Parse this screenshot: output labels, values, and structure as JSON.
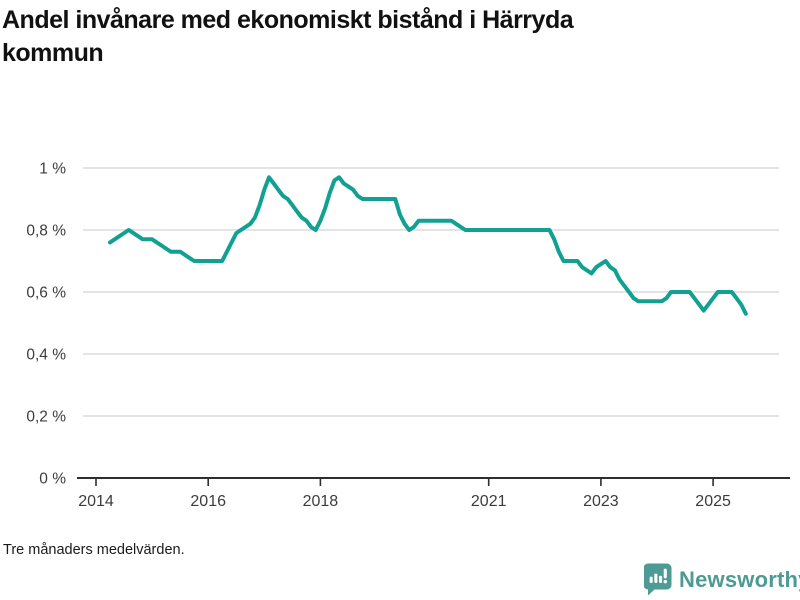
{
  "footnote": "Tre månaders medelvärden.",
  "branding": {
    "wordmark": "Newsworthy",
    "color": "#4E9A94",
    "icon": "speech-bubble-bar-chart-exclamation"
  },
  "colors": {
    "line": "#12A092",
    "grid": "#E1E1E1",
    "axis": "#2E2E2E",
    "tick_label": "#3C3C3C",
    "title": "#111111"
  },
  "chart_data": {
    "type": "line",
    "title": "Andel invånare med ekonomiskt bistånd i Härryda kommun",
    "note": "Tre månaders medelvärden.",
    "unit": "%",
    "x_type": "time-monthly",
    "xlabel": "",
    "ylabel": "",
    "ylim": [
      0,
      1.05
    ],
    "grid": "horizontal",
    "legend": "none",
    "yticks": [
      {
        "v": 0,
        "label": "0 %"
      },
      {
        "v": 0.2,
        "label": "0,2 %"
      },
      {
        "v": 0.4,
        "label": "0,4 %"
      },
      {
        "v": 0.6,
        "label": "0,6 %"
      },
      {
        "v": 0.8,
        "label": "0,8 %"
      },
      {
        "v": 1,
        "label": "1 %"
      }
    ],
    "xticks": [
      {
        "t": 2014,
        "label": "2014"
      },
      {
        "t": 2016,
        "label": "2016"
      },
      {
        "t": 2018,
        "label": "2018"
      },
      {
        "t": 2021,
        "label": "2021"
      },
      {
        "t": 2023,
        "label": "2023"
      },
      {
        "t": 2025,
        "label": "2025"
      }
    ],
    "series": [
      {
        "name": "Andel invånare med ekonomiskt bistånd (%)",
        "points": [
          [
            "2014-04",
            0.76
          ],
          [
            "2014-05",
            0.77
          ],
          [
            "2014-06",
            0.78
          ],
          [
            "2014-07",
            0.79
          ],
          [
            "2014-08",
            0.8
          ],
          [
            "2014-09",
            0.79
          ],
          [
            "2014-10",
            0.78
          ],
          [
            "2014-11",
            0.77
          ],
          [
            "2014-12",
            0.77
          ],
          [
            "2015-01",
            0.77
          ],
          [
            "2015-02",
            0.76
          ],
          [
            "2015-03",
            0.75
          ],
          [
            "2015-04",
            0.74
          ],
          [
            "2015-05",
            0.73
          ],
          [
            "2015-06",
            0.73
          ],
          [
            "2015-07",
            0.73
          ],
          [
            "2015-08",
            0.72
          ],
          [
            "2015-09",
            0.71
          ],
          [
            "2015-10",
            0.7
          ],
          [
            "2015-11",
            0.7
          ],
          [
            "2015-12",
            0.7
          ],
          [
            "2016-01",
            0.7
          ],
          [
            "2016-02",
            0.7
          ],
          [
            "2016-03",
            0.7
          ],
          [
            "2016-04",
            0.7
          ],
          [
            "2016-05",
            0.73
          ],
          [
            "2016-06",
            0.76
          ],
          [
            "2016-07",
            0.79
          ],
          [
            "2016-08",
            0.8
          ],
          [
            "2016-09",
            0.81
          ],
          [
            "2016-10",
            0.82
          ],
          [
            "2016-11",
            0.84
          ],
          [
            "2016-12",
            0.88
          ],
          [
            "2017-01",
            0.93
          ],
          [
            "2017-02",
            0.97
          ],
          [
            "2017-03",
            0.95
          ],
          [
            "2017-04",
            0.93
          ],
          [
            "2017-05",
            0.91
          ],
          [
            "2017-06",
            0.9
          ],
          [
            "2017-07",
            0.88
          ],
          [
            "2017-08",
            0.86
          ],
          [
            "2017-09",
            0.84
          ],
          [
            "2017-10",
            0.83
          ],
          [
            "2017-11",
            0.81
          ],
          [
            "2017-12",
            0.8
          ],
          [
            "2018-01",
            0.83
          ],
          [
            "2018-02",
            0.87
          ],
          [
            "2018-03",
            0.92
          ],
          [
            "2018-04",
            0.96
          ],
          [
            "2018-05",
            0.97
          ],
          [
            "2018-06",
            0.95
          ],
          [
            "2018-07",
            0.94
          ],
          [
            "2018-08",
            0.93
          ],
          [
            "2018-09",
            0.91
          ],
          [
            "2018-10",
            0.9
          ],
          [
            "2018-11",
            0.9
          ],
          [
            "2018-12",
            0.9
          ],
          [
            "2019-01",
            0.9
          ],
          [
            "2019-02",
            0.9
          ],
          [
            "2019-03",
            0.9
          ],
          [
            "2019-04",
            0.9
          ],
          [
            "2019-05",
            0.9
          ],
          [
            "2019-06",
            0.85
          ],
          [
            "2019-07",
            0.82
          ],
          [
            "2019-08",
            0.8
          ],
          [
            "2019-09",
            0.81
          ],
          [
            "2019-10",
            0.83
          ],
          [
            "2019-11",
            0.83
          ],
          [
            "2019-12",
            0.83
          ],
          [
            "2020-01",
            0.83
          ],
          [
            "2020-02",
            0.83
          ],
          [
            "2020-03",
            0.83
          ],
          [
            "2020-04",
            0.83
          ],
          [
            "2020-05",
            0.83
          ],
          [
            "2020-06",
            0.82
          ],
          [
            "2020-07",
            0.81
          ],
          [
            "2020-08",
            0.8
          ],
          [
            "2020-09",
            0.8
          ],
          [
            "2020-10",
            0.8
          ],
          [
            "2020-11",
            0.8
          ],
          [
            "2020-12",
            0.8
          ],
          [
            "2021-01",
            0.8
          ],
          [
            "2021-02",
            0.8
          ],
          [
            "2021-03",
            0.8
          ],
          [
            "2021-04",
            0.8
          ],
          [
            "2021-05",
            0.8
          ],
          [
            "2021-06",
            0.8
          ],
          [
            "2021-07",
            0.8
          ],
          [
            "2021-08",
            0.8
          ],
          [
            "2021-09",
            0.8
          ],
          [
            "2021-10",
            0.8
          ],
          [
            "2021-11",
            0.8
          ],
          [
            "2021-12",
            0.8
          ],
          [
            "2022-01",
            0.8
          ],
          [
            "2022-02",
            0.8
          ],
          [
            "2022-03",
            0.77
          ],
          [
            "2022-04",
            0.73
          ],
          [
            "2022-05",
            0.7
          ],
          [
            "2022-06",
            0.7
          ],
          [
            "2022-07",
            0.7
          ],
          [
            "2022-08",
            0.7
          ],
          [
            "2022-09",
            0.68
          ],
          [
            "2022-10",
            0.67
          ],
          [
            "2022-11",
            0.66
          ],
          [
            "2022-12",
            0.68
          ],
          [
            "2023-01",
            0.69
          ],
          [
            "2023-02",
            0.7
          ],
          [
            "2023-03",
            0.68
          ],
          [
            "2023-04",
            0.67
          ],
          [
            "2023-05",
            0.64
          ],
          [
            "2023-06",
            0.62
          ],
          [
            "2023-07",
            0.6
          ],
          [
            "2023-08",
            0.58
          ],
          [
            "2023-09",
            0.57
          ],
          [
            "2023-10",
            0.57
          ],
          [
            "2023-11",
            0.57
          ],
          [
            "2023-12",
            0.57
          ],
          [
            "2024-01",
            0.57
          ],
          [
            "2024-02",
            0.57
          ],
          [
            "2024-03",
            0.58
          ],
          [
            "2024-04",
            0.6
          ],
          [
            "2024-05",
            0.6
          ],
          [
            "2024-06",
            0.6
          ],
          [
            "2024-07",
            0.6
          ],
          [
            "2024-08",
            0.6
          ],
          [
            "2024-09",
            0.58
          ],
          [
            "2024-10",
            0.56
          ],
          [
            "2024-11",
            0.54
          ],
          [
            "2024-12",
            0.56
          ],
          [
            "2025-01",
            0.58
          ],
          [
            "2025-02",
            0.6
          ],
          [
            "2025-03",
            0.6
          ],
          [
            "2025-04",
            0.6
          ],
          [
            "2025-05",
            0.6
          ],
          [
            "2025-06",
            0.58
          ],
          [
            "2025-07",
            0.56
          ],
          [
            "2025-08",
            0.53
          ]
        ]
      }
    ]
  }
}
